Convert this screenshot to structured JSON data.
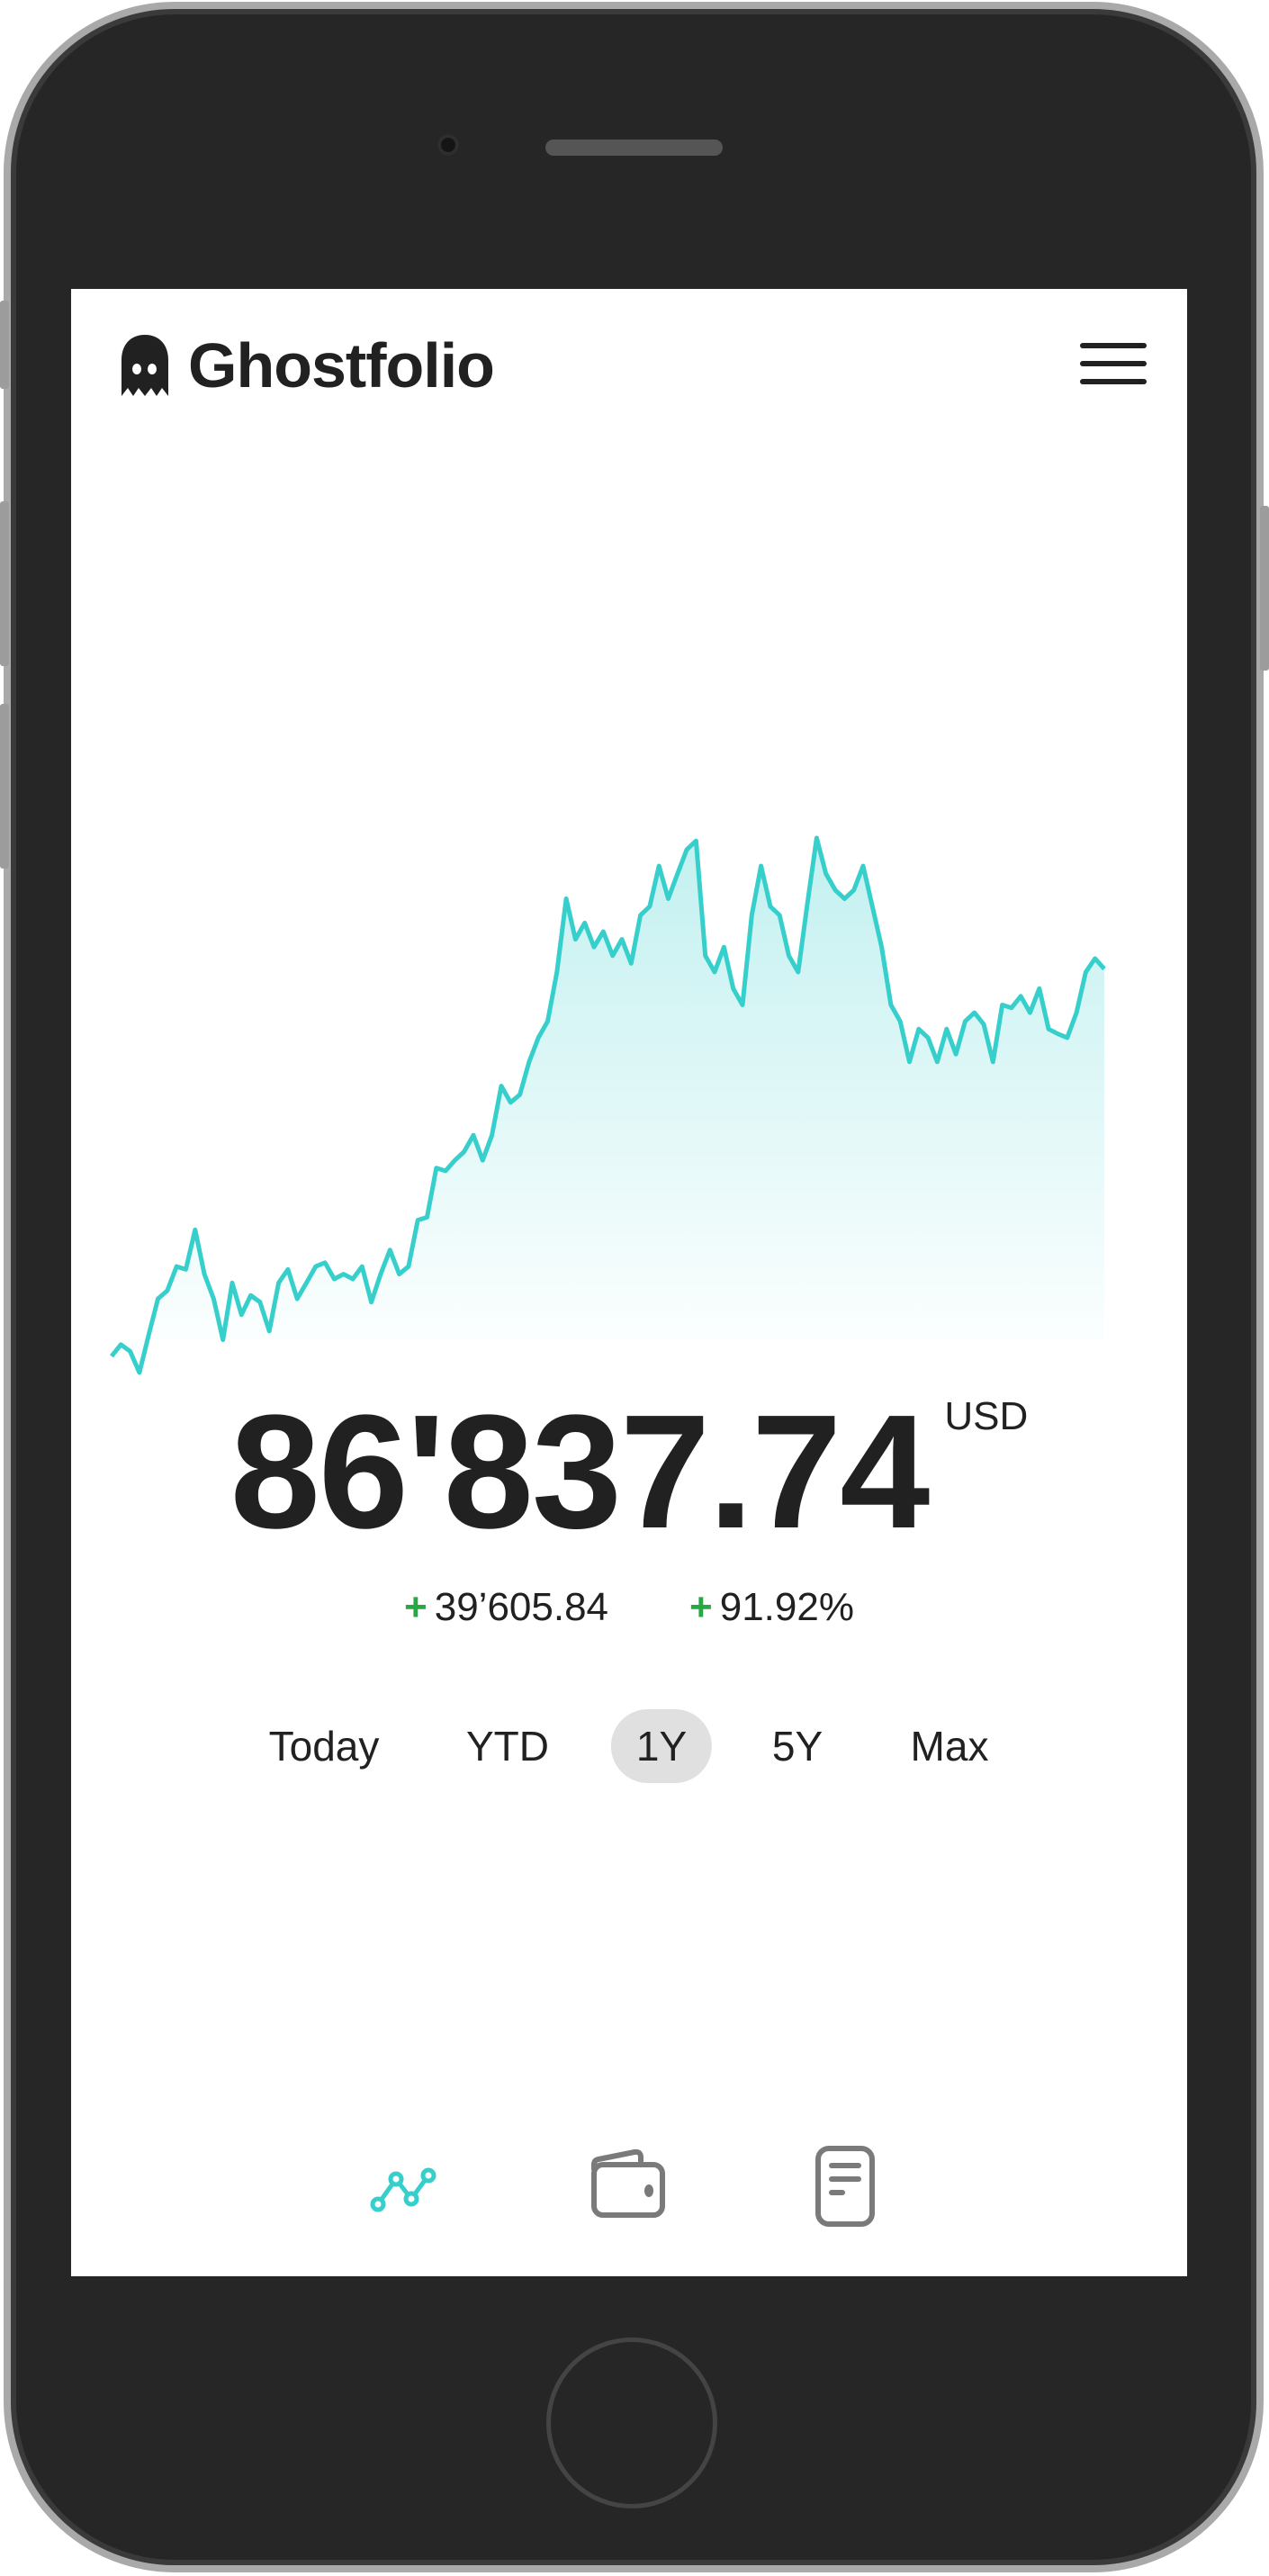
{
  "app": {
    "title": "Ghostfolio"
  },
  "portfolio": {
    "value": "86'837.74",
    "currency": "USD",
    "change_absolute": "39’605.84",
    "change_percent": "91.92%",
    "change_sign": "+"
  },
  "ranges": [
    {
      "label": "Today",
      "active": false
    },
    {
      "label": "YTD",
      "active": false
    },
    {
      "label": "1Y",
      "active": true
    },
    {
      "label": "5Y",
      "active": false
    },
    {
      "label": "Max",
      "active": false
    }
  ],
  "nav": [
    {
      "icon": "chart-line-icon",
      "active": true
    },
    {
      "icon": "wallet-icon",
      "active": false
    },
    {
      "icon": "document-icon",
      "active": false
    }
  ],
  "colors": {
    "accent": "#36cfcc",
    "positive": "#28a745",
    "text": "#212121",
    "icon_inactive": "#7a7a7a",
    "range_active_bg": "#e0e0e0"
  },
  "chart_data": {
    "type": "area",
    "range": "1Y",
    "currency": "USD",
    "values": [
      46700,
      47900,
      47200,
      45000,
      48900,
      52650,
      53500,
      56000,
      55700,
      59800,
      55200,
      52650,
      48400,
      54300,
      51000,
      53000,
      52300,
      49300,
      54300,
      55700,
      52650,
      54300,
      56000,
      56400,
      54700,
      55200,
      54700,
      56000,
      52300,
      55200,
      57700,
      55200,
      56000,
      60800,
      61100,
      66200,
      65900,
      67000,
      67900,
      69600,
      67000,
      69600,
      74700,
      73000,
      73800,
      77200,
      79700,
      81400,
      86500,
      94100,
      89900,
      91600,
      89100,
      90700,
      88200,
      89900,
      87400,
      92400,
      93300,
      97500,
      94100,
      96700,
      99200,
      100100,
      88200,
      86500,
      89100,
      84800,
      83100,
      92400,
      97500,
      93300,
      92400,
      88200,
      86500,
      93600,
      100400,
      96700,
      95000,
      94100,
      95000,
      97500,
      93300,
      89100,
      83100,
      81400,
      77200,
      80600,
      79700,
      77200,
      80600,
      78000,
      81400,
      82300,
      81100,
      77200,
      83100,
      82800,
      84000,
      82300,
      84800,
      80600,
      80100,
      79700,
      82300,
      86500,
      87900,
      86838
    ],
    "axes_visible": false,
    "grid": false
  }
}
